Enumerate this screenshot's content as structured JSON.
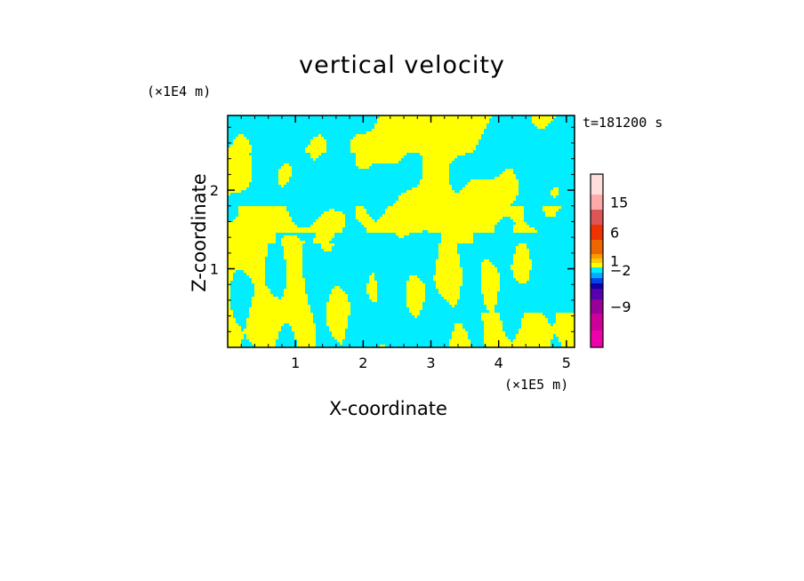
{
  "chart_data": {
    "type": "heatmap",
    "title": "vertical velocity",
    "xlabel": "X-coordinate",
    "ylabel": "Z-coordinate",
    "x_unit": "(×1E5 m)",
    "y_unit": "(×1E4 m)",
    "time_label": "t=181200 s",
    "xlim": [
      0,
      5.12
    ],
    "ylim": [
      0,
      2.95
    ],
    "x_ticks": [
      1,
      2,
      3,
      4,
      5
    ],
    "y_ticks": [
      1,
      2
    ],
    "colorbar": {
      "ticks": [
        15,
        6,
        1,
        -2,
        -9
      ],
      "levels": [
        {
          "color": "#ee00aa"
        },
        {
          "color": "#cc0099"
        },
        {
          "color": "#990099"
        },
        {
          "color": "#5500aa"
        },
        {
          "color": "#1100aa"
        },
        {
          "color": "#0044ee"
        },
        {
          "color": "#00aaff"
        },
        {
          "color": "#00eeff"
        },
        {
          "color": "#ffff00"
        },
        {
          "color": "#ffcc00"
        },
        {
          "color": "#ff9900"
        },
        {
          "color": "#ee6600"
        },
        {
          "color": "#ee3300"
        },
        {
          "color": "#dd5555"
        },
        {
          "color": "#ffaaaa"
        },
        {
          "color": "#ffdddd"
        }
      ]
    },
    "field_colors": {
      "positive": "#ffff00",
      "negative": "#00eeff"
    }
  }
}
